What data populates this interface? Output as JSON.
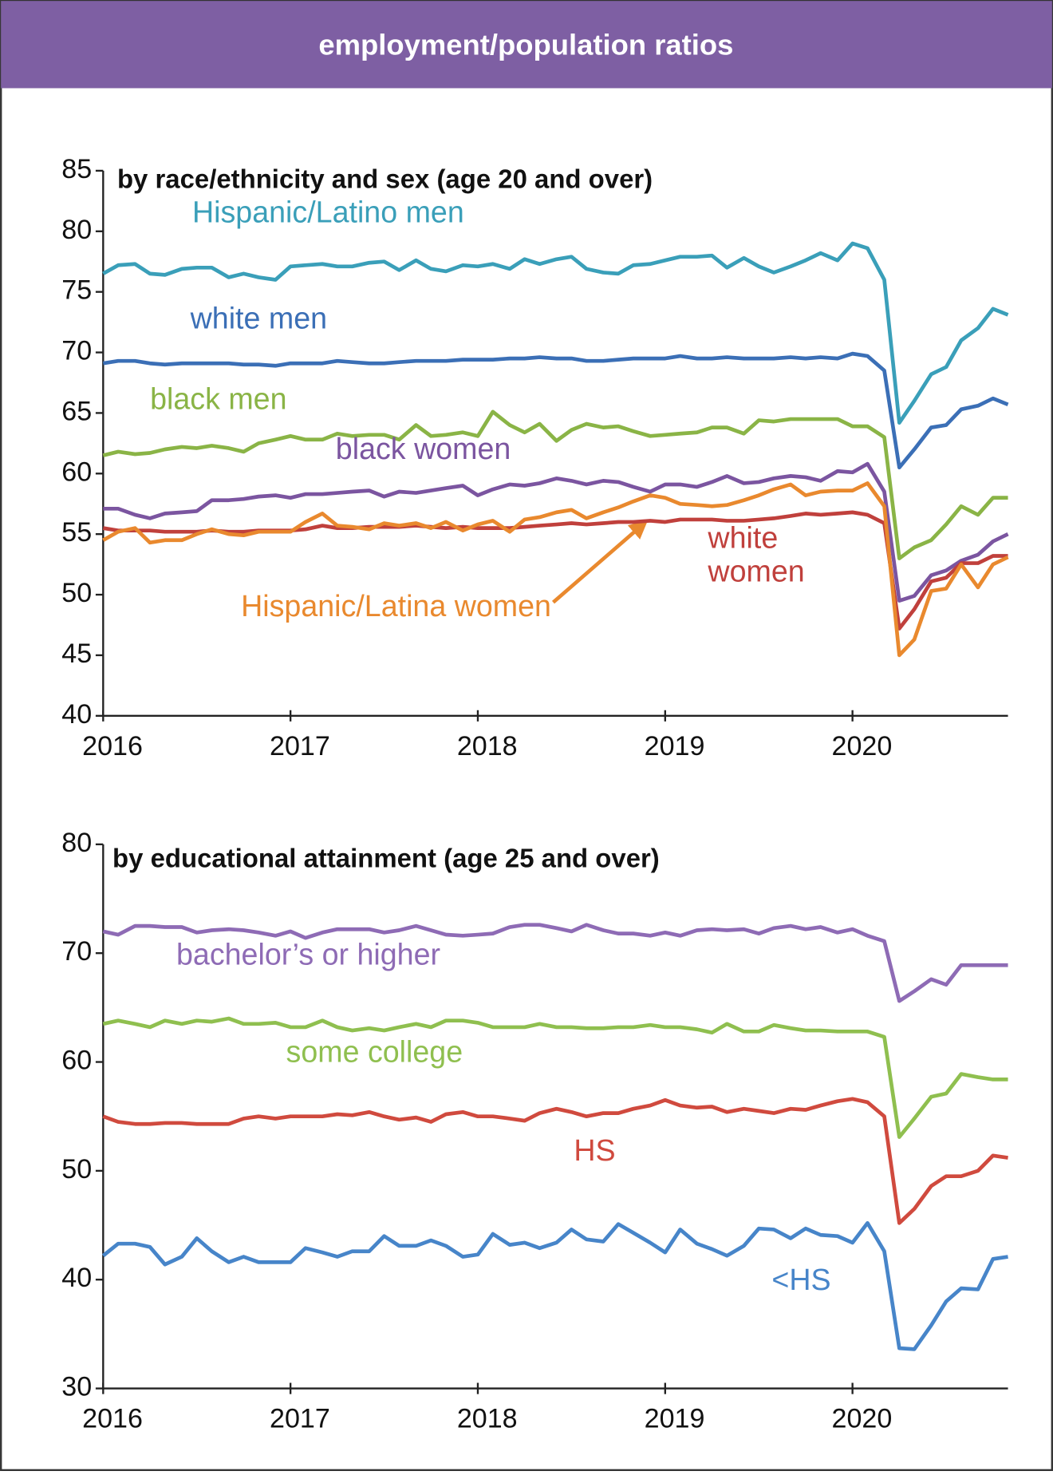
{
  "title": "employment/population ratios",
  "chart_data": [
    {
      "type": "line",
      "title": "by race/ethnicity and sex (age 20 and over)",
      "x": [
        2016,
        2016.08,
        2016.17,
        2016.25,
        2016.33,
        2016.42,
        2016.5,
        2016.58,
        2016.67,
        2016.75,
        2016.83,
        2016.92,
        2017,
        2017.08,
        2017.17,
        2017.25,
        2017.33,
        2017.42,
        2017.5,
        2017.58,
        2017.67,
        2017.75,
        2017.83,
        2017.92,
        2018,
        2018.08,
        2018.17,
        2018.25,
        2018.33,
        2018.42,
        2018.5,
        2018.58,
        2018.67,
        2018.75,
        2018.83,
        2018.92,
        2019,
        2019.08,
        2019.17,
        2019.25,
        2019.33,
        2019.42,
        2019.5,
        2019.58,
        2019.67,
        2019.75,
        2019.83,
        2019.92,
        2020,
        2020.08,
        2020.17,
        2020.25,
        2020.33,
        2020.42,
        2020.5,
        2020.58,
        2020.67,
        2020.75,
        2020.83
      ],
      "xlim": [
        2016,
        2020.83
      ],
      "xticks": [
        2016,
        2017,
        2018,
        2019,
        2020
      ],
      "ylim": [
        40,
        85
      ],
      "yticks": [
        40,
        45,
        50,
        55,
        60,
        65,
        70,
        75,
        80,
        85
      ],
      "series": [
        {
          "name": "Hispanic/Latino men",
          "color": "#3a9fb9",
          "values": [
            76.5,
            77.2,
            77.3,
            76.5,
            76.4,
            76.9,
            77.0,
            77.0,
            76.2,
            76.5,
            76.2,
            76.0,
            77.1,
            77.2,
            77.3,
            77.1,
            77.1,
            77.4,
            77.5,
            76.8,
            77.6,
            76.9,
            76.7,
            77.2,
            77.1,
            77.3,
            76.9,
            77.7,
            77.3,
            77.7,
            77.9,
            76.9,
            76.6,
            76.5,
            77.2,
            77.3,
            77.6,
            77.9,
            77.9,
            78.0,
            77.0,
            77.8,
            77.1,
            76.6,
            77.1,
            77.6,
            78.2,
            77.6,
            79.0,
            78.6,
            76.0,
            64.2,
            66.0,
            68.2,
            68.8,
            71.0,
            72.0,
            73.6,
            73.1
          ]
        },
        {
          "name": "white men",
          "color": "#3b6fb6",
          "values": [
            69.1,
            69.3,
            69.3,
            69.1,
            69.0,
            69.1,
            69.1,
            69.1,
            69.1,
            69.0,
            69.0,
            68.9,
            69.1,
            69.1,
            69.1,
            69.3,
            69.2,
            69.1,
            69.1,
            69.2,
            69.3,
            69.3,
            69.3,
            69.4,
            69.4,
            69.4,
            69.5,
            69.5,
            69.6,
            69.5,
            69.5,
            69.3,
            69.3,
            69.4,
            69.5,
            69.5,
            69.5,
            69.7,
            69.5,
            69.5,
            69.6,
            69.5,
            69.5,
            69.5,
            69.6,
            69.5,
            69.6,
            69.5,
            69.9,
            69.7,
            68.5,
            60.5,
            62.0,
            63.8,
            64.0,
            65.3,
            65.6,
            66.2,
            65.7
          ]
        },
        {
          "name": "black men",
          "color": "#8ab446",
          "values": [
            61.5,
            61.8,
            61.6,
            61.7,
            62.0,
            62.2,
            62.1,
            62.3,
            62.1,
            61.8,
            62.5,
            62.8,
            63.1,
            62.8,
            62.8,
            63.3,
            63.1,
            63.2,
            63.2,
            62.8,
            64.0,
            63.1,
            63.2,
            63.4,
            63.1,
            65.1,
            64.0,
            63.4,
            64.1,
            62.7,
            63.6,
            64.1,
            63.8,
            63.9,
            63.5,
            63.1,
            63.2,
            63.3,
            63.4,
            63.8,
            63.8,
            63.3,
            64.4,
            64.3,
            64.5,
            64.5,
            64.5,
            64.5,
            63.9,
            63.9,
            63.0,
            53.0,
            53.9,
            54.5,
            55.8,
            57.3,
            56.6,
            58.0,
            58.0
          ]
        },
        {
          "name": "black women",
          "color": "#7b55a0",
          "values": [
            57.1,
            57.1,
            56.6,
            56.3,
            56.7,
            56.8,
            56.9,
            57.8,
            57.8,
            57.9,
            58.1,
            58.2,
            58.0,
            58.3,
            58.3,
            58.4,
            58.5,
            58.6,
            58.1,
            58.5,
            58.4,
            58.6,
            58.8,
            59.0,
            58.2,
            58.7,
            59.1,
            59.0,
            59.2,
            59.6,
            59.4,
            59.1,
            59.4,
            59.3,
            58.9,
            58.5,
            59.1,
            59.1,
            58.9,
            59.3,
            59.8,
            59.2,
            59.3,
            59.6,
            59.8,
            59.7,
            59.4,
            60.2,
            60.1,
            60.8,
            58.5,
            49.5,
            49.9,
            51.6,
            52.0,
            52.8,
            53.3,
            54.4,
            55.0
          ]
        },
        {
          "name": "white women",
          "color": "#c0403c",
          "values": [
            55.5,
            55.3,
            55.3,
            55.3,
            55.2,
            55.2,
            55.2,
            55.3,
            55.2,
            55.2,
            55.3,
            55.3,
            55.3,
            55.4,
            55.7,
            55.5,
            55.5,
            55.6,
            55.6,
            55.6,
            55.7,
            55.6,
            55.5,
            55.6,
            55.5,
            55.5,
            55.5,
            55.6,
            55.7,
            55.8,
            55.9,
            55.8,
            55.9,
            56.0,
            56.0,
            56.1,
            56.0,
            56.2,
            56.2,
            56.2,
            56.1,
            56.1,
            56.2,
            56.3,
            56.5,
            56.7,
            56.6,
            56.7,
            56.8,
            56.6,
            55.9,
            47.2,
            48.8,
            51.1,
            51.4,
            52.6,
            52.6,
            53.2,
            53.2
          ]
        },
        {
          "name": "Hispanic/Latina women",
          "color": "#e9892e",
          "values": [
            54.5,
            55.2,
            55.5,
            54.3,
            54.5,
            54.5,
            55.0,
            55.4,
            55.0,
            54.9,
            55.2,
            55.2,
            55.2,
            56.0,
            56.7,
            55.7,
            55.6,
            55.4,
            55.9,
            55.7,
            55.9,
            55.5,
            56.0,
            55.3,
            55.8,
            56.1,
            55.2,
            56.2,
            56.4,
            56.8,
            57.0,
            56.3,
            56.8,
            57.2,
            57.7,
            58.2,
            58.0,
            57.5,
            57.4,
            57.3,
            57.4,
            57.8,
            58.2,
            58.7,
            59.1,
            58.2,
            58.5,
            58.6,
            58.6,
            59.2,
            57.3,
            45.0,
            46.3,
            50.3,
            50.5,
            52.5,
            50.6,
            52.5,
            53.1
          ]
        }
      ]
    },
    {
      "type": "line",
      "title": "by educational attainment (age 25 and over)",
      "x": [
        2016,
        2016.08,
        2016.17,
        2016.25,
        2016.33,
        2016.42,
        2016.5,
        2016.58,
        2016.67,
        2016.75,
        2016.83,
        2016.92,
        2017,
        2017.08,
        2017.17,
        2017.25,
        2017.33,
        2017.42,
        2017.5,
        2017.58,
        2017.67,
        2017.75,
        2017.83,
        2017.92,
        2018,
        2018.08,
        2018.17,
        2018.25,
        2018.33,
        2018.42,
        2018.5,
        2018.58,
        2018.67,
        2018.75,
        2018.83,
        2018.92,
        2019,
        2019.08,
        2019.17,
        2019.25,
        2019.33,
        2019.42,
        2019.5,
        2019.58,
        2019.67,
        2019.75,
        2019.83,
        2019.92,
        2020,
        2020.08,
        2020.17,
        2020.25,
        2020.33,
        2020.42,
        2020.5,
        2020.58,
        2020.67,
        2020.75,
        2020.83
      ],
      "xlim": [
        2016,
        2020.83
      ],
      "xticks": [
        2016,
        2017,
        2018,
        2019,
        2020
      ],
      "ylim": [
        30,
        80
      ],
      "yticks": [
        30,
        40,
        50,
        60,
        70,
        80
      ],
      "series": [
        {
          "name": "bachelor’s or higher",
          "color": "#8e6bb5",
          "values": [
            72.0,
            71.7,
            72.5,
            72.5,
            72.4,
            72.4,
            71.9,
            72.1,
            72.2,
            72.1,
            71.9,
            71.6,
            72.0,
            71.4,
            71.9,
            72.2,
            72.2,
            72.2,
            71.9,
            72.1,
            72.5,
            72.1,
            71.7,
            71.6,
            71.7,
            71.8,
            72.4,
            72.6,
            72.6,
            72.3,
            72.0,
            72.6,
            72.1,
            71.8,
            71.8,
            71.6,
            71.9,
            71.6,
            72.1,
            72.2,
            72.1,
            72.2,
            71.8,
            72.3,
            72.5,
            72.2,
            72.4,
            71.9,
            72.2,
            71.6,
            71.1,
            65.6,
            66.5,
            67.6,
            67.1,
            68.9,
            68.9,
            68.9,
            68.9
          ]
        },
        {
          "name": "some college",
          "color": "#8fbf4f",
          "values": [
            63.5,
            63.8,
            63.5,
            63.2,
            63.8,
            63.5,
            63.8,
            63.7,
            64.0,
            63.5,
            63.5,
            63.6,
            63.2,
            63.2,
            63.8,
            63.2,
            62.9,
            63.1,
            62.9,
            63.2,
            63.5,
            63.2,
            63.8,
            63.8,
            63.6,
            63.2,
            63.2,
            63.2,
            63.5,
            63.2,
            63.2,
            63.1,
            63.1,
            63.2,
            63.2,
            63.4,
            63.2,
            63.2,
            63.0,
            62.7,
            63.5,
            62.8,
            62.8,
            63.4,
            63.1,
            62.9,
            62.9,
            62.8,
            62.8,
            62.8,
            62.3,
            53.1,
            54.8,
            56.8,
            57.1,
            58.9,
            58.6,
            58.4,
            58.4
          ]
        },
        {
          "name": "HS",
          "color": "#d04a3e",
          "values": [
            55.0,
            54.5,
            54.3,
            54.3,
            54.4,
            54.4,
            54.3,
            54.3,
            54.3,
            54.8,
            55.0,
            54.8,
            55.0,
            55.0,
            55.0,
            55.2,
            55.1,
            55.4,
            55.0,
            54.7,
            54.9,
            54.5,
            55.2,
            55.4,
            55.0,
            55.0,
            54.8,
            54.6,
            55.3,
            55.7,
            55.4,
            55.0,
            55.3,
            55.3,
            55.7,
            56.0,
            56.5,
            56.0,
            55.8,
            55.9,
            55.4,
            55.7,
            55.5,
            55.3,
            55.7,
            55.6,
            56.0,
            56.4,
            56.6,
            56.3,
            55.0,
            45.2,
            46.5,
            48.6,
            49.5,
            49.5,
            50.0,
            51.4,
            51.2
          ]
        },
        {
          "name": "<HS",
          "color": "#4785c9",
          "values": [
            42.2,
            43.3,
            43.3,
            43.0,
            41.4,
            42.1,
            43.8,
            42.6,
            41.6,
            42.1,
            41.6,
            41.6,
            41.6,
            42.9,
            42.5,
            42.1,
            42.6,
            42.6,
            44.0,
            43.1,
            43.1,
            43.6,
            43.1,
            42.1,
            42.3,
            44.2,
            43.2,
            43.4,
            42.9,
            43.4,
            44.6,
            43.7,
            43.5,
            45.1,
            44.3,
            43.4,
            42.5,
            44.6,
            43.3,
            42.8,
            42.2,
            43.1,
            44.7,
            44.6,
            43.8,
            44.7,
            44.1,
            44.0,
            43.4,
            45.2,
            42.6,
            33.7,
            33.6,
            35.8,
            38.0,
            39.2,
            39.1,
            41.9,
            42.1
          ]
        }
      ]
    }
  ]
}
